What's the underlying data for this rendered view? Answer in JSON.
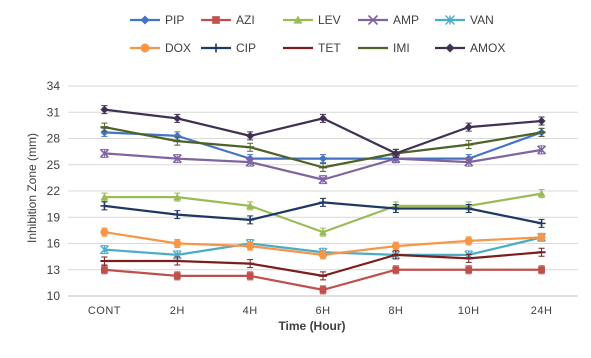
{
  "chart_data": {
    "type": "line",
    "title": "",
    "xlabel": "Time (Hour)",
    "ylabel": "Inhibition Zone (mm)",
    "ylim": [
      10,
      34
    ],
    "yticks": [
      10,
      13,
      16,
      19,
      22,
      25,
      28,
      31,
      34
    ],
    "categories": [
      "CONT",
      "2H",
      "4H",
      "6H",
      "8H",
      "10H",
      "24H"
    ],
    "grid": "horizontal",
    "legend_position": "top",
    "series": [
      {
        "name": "PIP",
        "color": "#4472C4",
        "marker": "diamond",
        "values": [
          28.7,
          28.3,
          25.7,
          25.7,
          25.7,
          25.7,
          28.7
        ]
      },
      {
        "name": "AZI",
        "color": "#C0504D",
        "marker": "square",
        "values": [
          13.0,
          12.3,
          12.3,
          10.7,
          13.0,
          13.0,
          13.0
        ]
      },
      {
        "name": "LEV",
        "color": "#9BBB59",
        "marker": "triangle",
        "values": [
          21.3,
          21.3,
          20.3,
          17.3,
          20.3,
          20.3,
          21.7
        ]
      },
      {
        "name": "AMP",
        "color": "#8064A2",
        "marker": "x",
        "values": [
          26.3,
          25.7,
          25.3,
          23.3,
          25.7,
          25.3,
          26.7
        ]
      },
      {
        "name": "VAN",
        "color": "#4BACC6",
        "marker": "star",
        "values": [
          15.3,
          14.7,
          16.0,
          15.0,
          14.7,
          14.7,
          16.7
        ]
      },
      {
        "name": "DOX",
        "color": "#F79646",
        "marker": "circle",
        "values": [
          17.3,
          16.0,
          15.7,
          14.7,
          15.7,
          16.3,
          16.7
        ]
      },
      {
        "name": "CIP",
        "color": "#1F3864",
        "marker": "plus",
        "values": [
          20.3,
          19.3,
          18.7,
          20.7,
          20.0,
          20.0,
          18.3
        ]
      },
      {
        "name": "TET",
        "color": "#7B1E1E",
        "marker": "dash",
        "values": [
          14.0,
          14.0,
          13.7,
          12.3,
          14.7,
          14.3,
          15.0
        ]
      },
      {
        "name": "IMI",
        "color": "#4F6228",
        "marker": "dash",
        "values": [
          29.3,
          27.7,
          27.0,
          24.7,
          26.3,
          27.3,
          28.7
        ]
      },
      {
        "name": "AMOX",
        "color": "#403151",
        "marker": "diamond",
        "values": [
          31.3,
          30.3,
          28.3,
          30.3,
          26.3,
          29.3,
          30.0
        ]
      }
    ]
  }
}
